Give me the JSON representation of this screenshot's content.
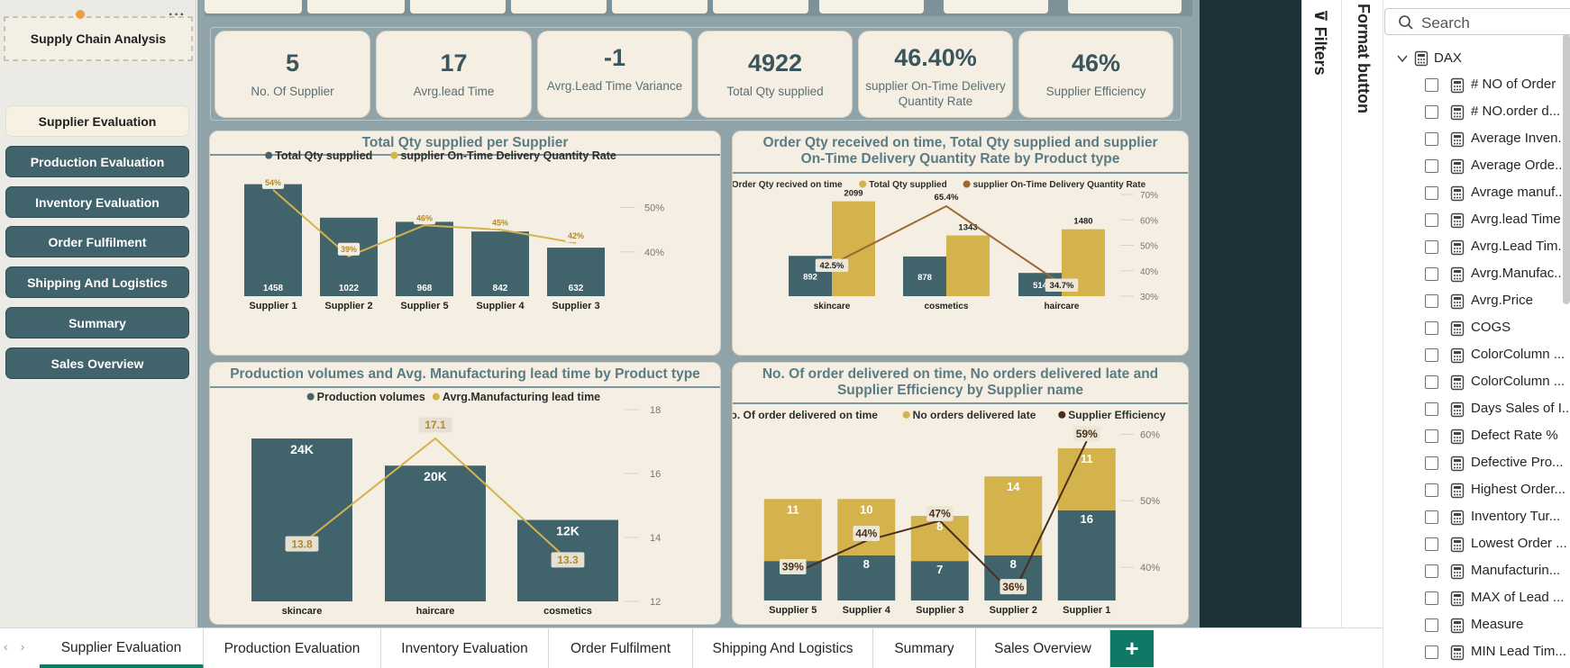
{
  "nav": {
    "title": "Supply Chain Analysis",
    "items": [
      {
        "label": "Supplier Evaluation",
        "active": true
      },
      {
        "label": "Production Evaluation"
      },
      {
        "label": "Inventory Evaluation"
      },
      {
        "label": "Order Fulfilment"
      },
      {
        "label": "Shipping And Logistics"
      },
      {
        "label": "Summary"
      },
      {
        "label": "Sales Overview"
      }
    ]
  },
  "kpis": [
    {
      "value": "5",
      "label": "No. Of Supplier"
    },
    {
      "value": "17",
      "label": "Avrg.lead Time"
    },
    {
      "value": "-1",
      "label": "Avrg.Lead Time Variance"
    },
    {
      "value": "4922",
      "label": "Total Qty supplied"
    },
    {
      "value": "46.40%",
      "label": "supplier On-Time Delivery Quantity Rate"
    },
    {
      "value": "46%",
      "label": "Supplier Efficiency"
    }
  ],
  "colors": {
    "teal": "#41636c",
    "gold": "#d4b24c",
    "brown": "#9a6a2f",
    "dark_brown": "#4a2e1c",
    "line_gold": "#d4b24c"
  },
  "chart_data": [
    {
      "type": "bar",
      "title": "Total Qty supplied per Supplier",
      "legend": [
        "Total Qty supplied",
        "supplier On-Time Delivery Quantity Rate"
      ],
      "categories": [
        "Supplier 1",
        "Supplier 2",
        "Supplier 5",
        "Supplier 4",
        "Supplier 3"
      ],
      "series": [
        {
          "name": "Total Qty supplied",
          "type": "bar",
          "values": [
            1458,
            1022,
            968,
            842,
            632
          ],
          "labels": [
            "1458",
            "1022",
            "968",
            "842",
            "632"
          ]
        },
        {
          "name": "supplier On-Time Delivery Quantity Rate",
          "type": "line",
          "values": [
            54,
            39,
            46,
            45,
            42
          ],
          "labels": [
            "54%",
            "39%",
            "46%",
            "45%",
            "42%"
          ]
        }
      ],
      "y2_ticks": [
        "50%",
        "40%"
      ],
      "y2_tick_values": [
        50,
        40
      ],
      "y2lim": [
        30,
        56
      ]
    },
    {
      "type": "bar",
      "title": "Order Qty received on time, Total Qty supplied and supplier On-Time Delivery Quantity Rate by Product type",
      "legend": [
        "Order Qty recived on time",
        "Total Qty supplied",
        "supplier On-Time Delivery Quantity Rate"
      ],
      "categories": [
        "skincare",
        "cosmetics",
        "haircare"
      ],
      "series": [
        {
          "name": "Order Qty recived on time",
          "type": "bar",
          "values": [
            892,
            878,
            514
          ],
          "labels": [
            "892",
            "878",
            "514"
          ]
        },
        {
          "name": "Total Qty supplied",
          "type": "bar",
          "values": [
            2099,
            1343,
            1480
          ],
          "labels": [
            "2099",
            "1343",
            "1480"
          ]
        },
        {
          "name": "supplier On-Time Delivery Quantity Rate",
          "type": "line",
          "values": [
            42.5,
            65.4,
            34.7
          ],
          "labels": [
            "42.5%",
            "65.4%",
            "34.7%"
          ]
        }
      ],
      "y2_ticks": [
        "70%",
        "60%",
        "50%",
        "40%",
        "30%"
      ],
      "y2_tick_values": [
        70,
        60,
        50,
        40,
        30
      ],
      "y2lim": [
        30,
        70
      ]
    },
    {
      "type": "bar",
      "title": "Production volumes and Avg. Manufacturing lead time by Product type",
      "legend": [
        "Production volumes",
        "Avrg.Manufacturing lead time"
      ],
      "categories": [
        "skincare",
        "haircare",
        "cosmetics"
      ],
      "series": [
        {
          "name": "Production volumes",
          "type": "bar",
          "values": [
            24000,
            20000,
            12000
          ],
          "labels": [
            "24K",
            "20K",
            "12K"
          ]
        },
        {
          "name": "Avrg.Manufacturing lead time",
          "type": "line",
          "values": [
            13.8,
            17.1,
            13.3
          ],
          "labels": [
            "13.8",
            "17.1",
            "13.3"
          ]
        }
      ],
      "y2_ticks": [
        "18",
        "16",
        "14",
        "12"
      ],
      "y2_tick_values": [
        18,
        16,
        14,
        12
      ],
      "y2lim": [
        12,
        18
      ]
    },
    {
      "type": "bar",
      "title": "No. Of order delivered on time, No orders delivered late and Supplier Efficiency by Supplier name",
      "legend": [
        "No. Of order delivered on time",
        "No orders delivered late",
        "Supplier Efficiency"
      ],
      "categories": [
        "Supplier 5",
        "Supplier 4",
        "Supplier 3",
        "Supplier 2",
        "Supplier 1"
      ],
      "series": [
        {
          "name": "No. Of order delivered on time",
          "type": "bar",
          "values": [
            7,
            8,
            7,
            8,
            16
          ],
          "labels": [
            "7",
            "8",
            "7",
            "8",
            "16"
          ]
        },
        {
          "name": "No orders delivered late",
          "type": "bar",
          "values": [
            11,
            10,
            8,
            14,
            11
          ],
          "labels": [
            "11",
            "10",
            "8",
            "14",
            "11"
          ]
        },
        {
          "name": "Supplier Efficiency",
          "type": "line",
          "values": [
            39,
            44,
            47,
            36,
            59
          ],
          "labels": [
            "39%",
            "44%",
            "47%",
            "36%",
            "59%"
          ]
        }
      ],
      "y2_ticks": [
        "60%",
        "50%",
        "40%"
      ],
      "y2_tick_values": [
        60,
        50,
        40
      ],
      "y2lim": [
        35,
        61
      ]
    }
  ],
  "panes": {
    "filters": "Filters",
    "format": "Format button"
  },
  "data_pane": {
    "search_placeholder": "Search",
    "table": "DAX",
    "fields": [
      "# NO of Order",
      "# NO.order d...",
      "Average Inven...",
      "Average Orde...",
      "Avrage manuf...",
      "Avrg.lead Time",
      "Avrg.Lead Tim...",
      "Avrg.Manufac...",
      "Avrg.Price",
      "COGS",
      "ColorColumn ...",
      "ColorColumn ...",
      "Days Sales of I...",
      "Defect Rate %",
      "Defective Pro...",
      "Highest Order...",
      "Inventory Tur...",
      "Lowest Order ...",
      "Manufacturin...",
      "MAX of Lead ...",
      "Measure",
      "MIN Lead Tim..."
    ]
  },
  "tabs": [
    "Supplier Evaluation",
    "Production Evaluation",
    "Inventory Evaluation",
    "Order Fulfilment",
    "Shipping And Logistics",
    "Summary",
    "Sales Overview"
  ],
  "tab_add": "+"
}
